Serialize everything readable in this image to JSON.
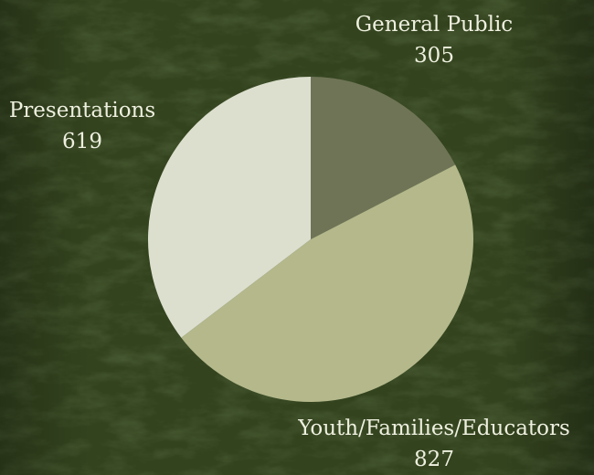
{
  "chart_data": {
    "type": "pie",
    "slices": [
      {
        "label": "General Public",
        "value": 305,
        "color": "#6f7457"
      },
      {
        "label": "Youth/Families/Educators",
        "value": 827,
        "color": "#b4b88b"
      },
      {
        "label": "Presentations",
        "value": 619,
        "color": "#dcdfce"
      }
    ],
    "start_angle_deg": 0,
    "direction": "clockwise",
    "background_color": "#33431e"
  }
}
